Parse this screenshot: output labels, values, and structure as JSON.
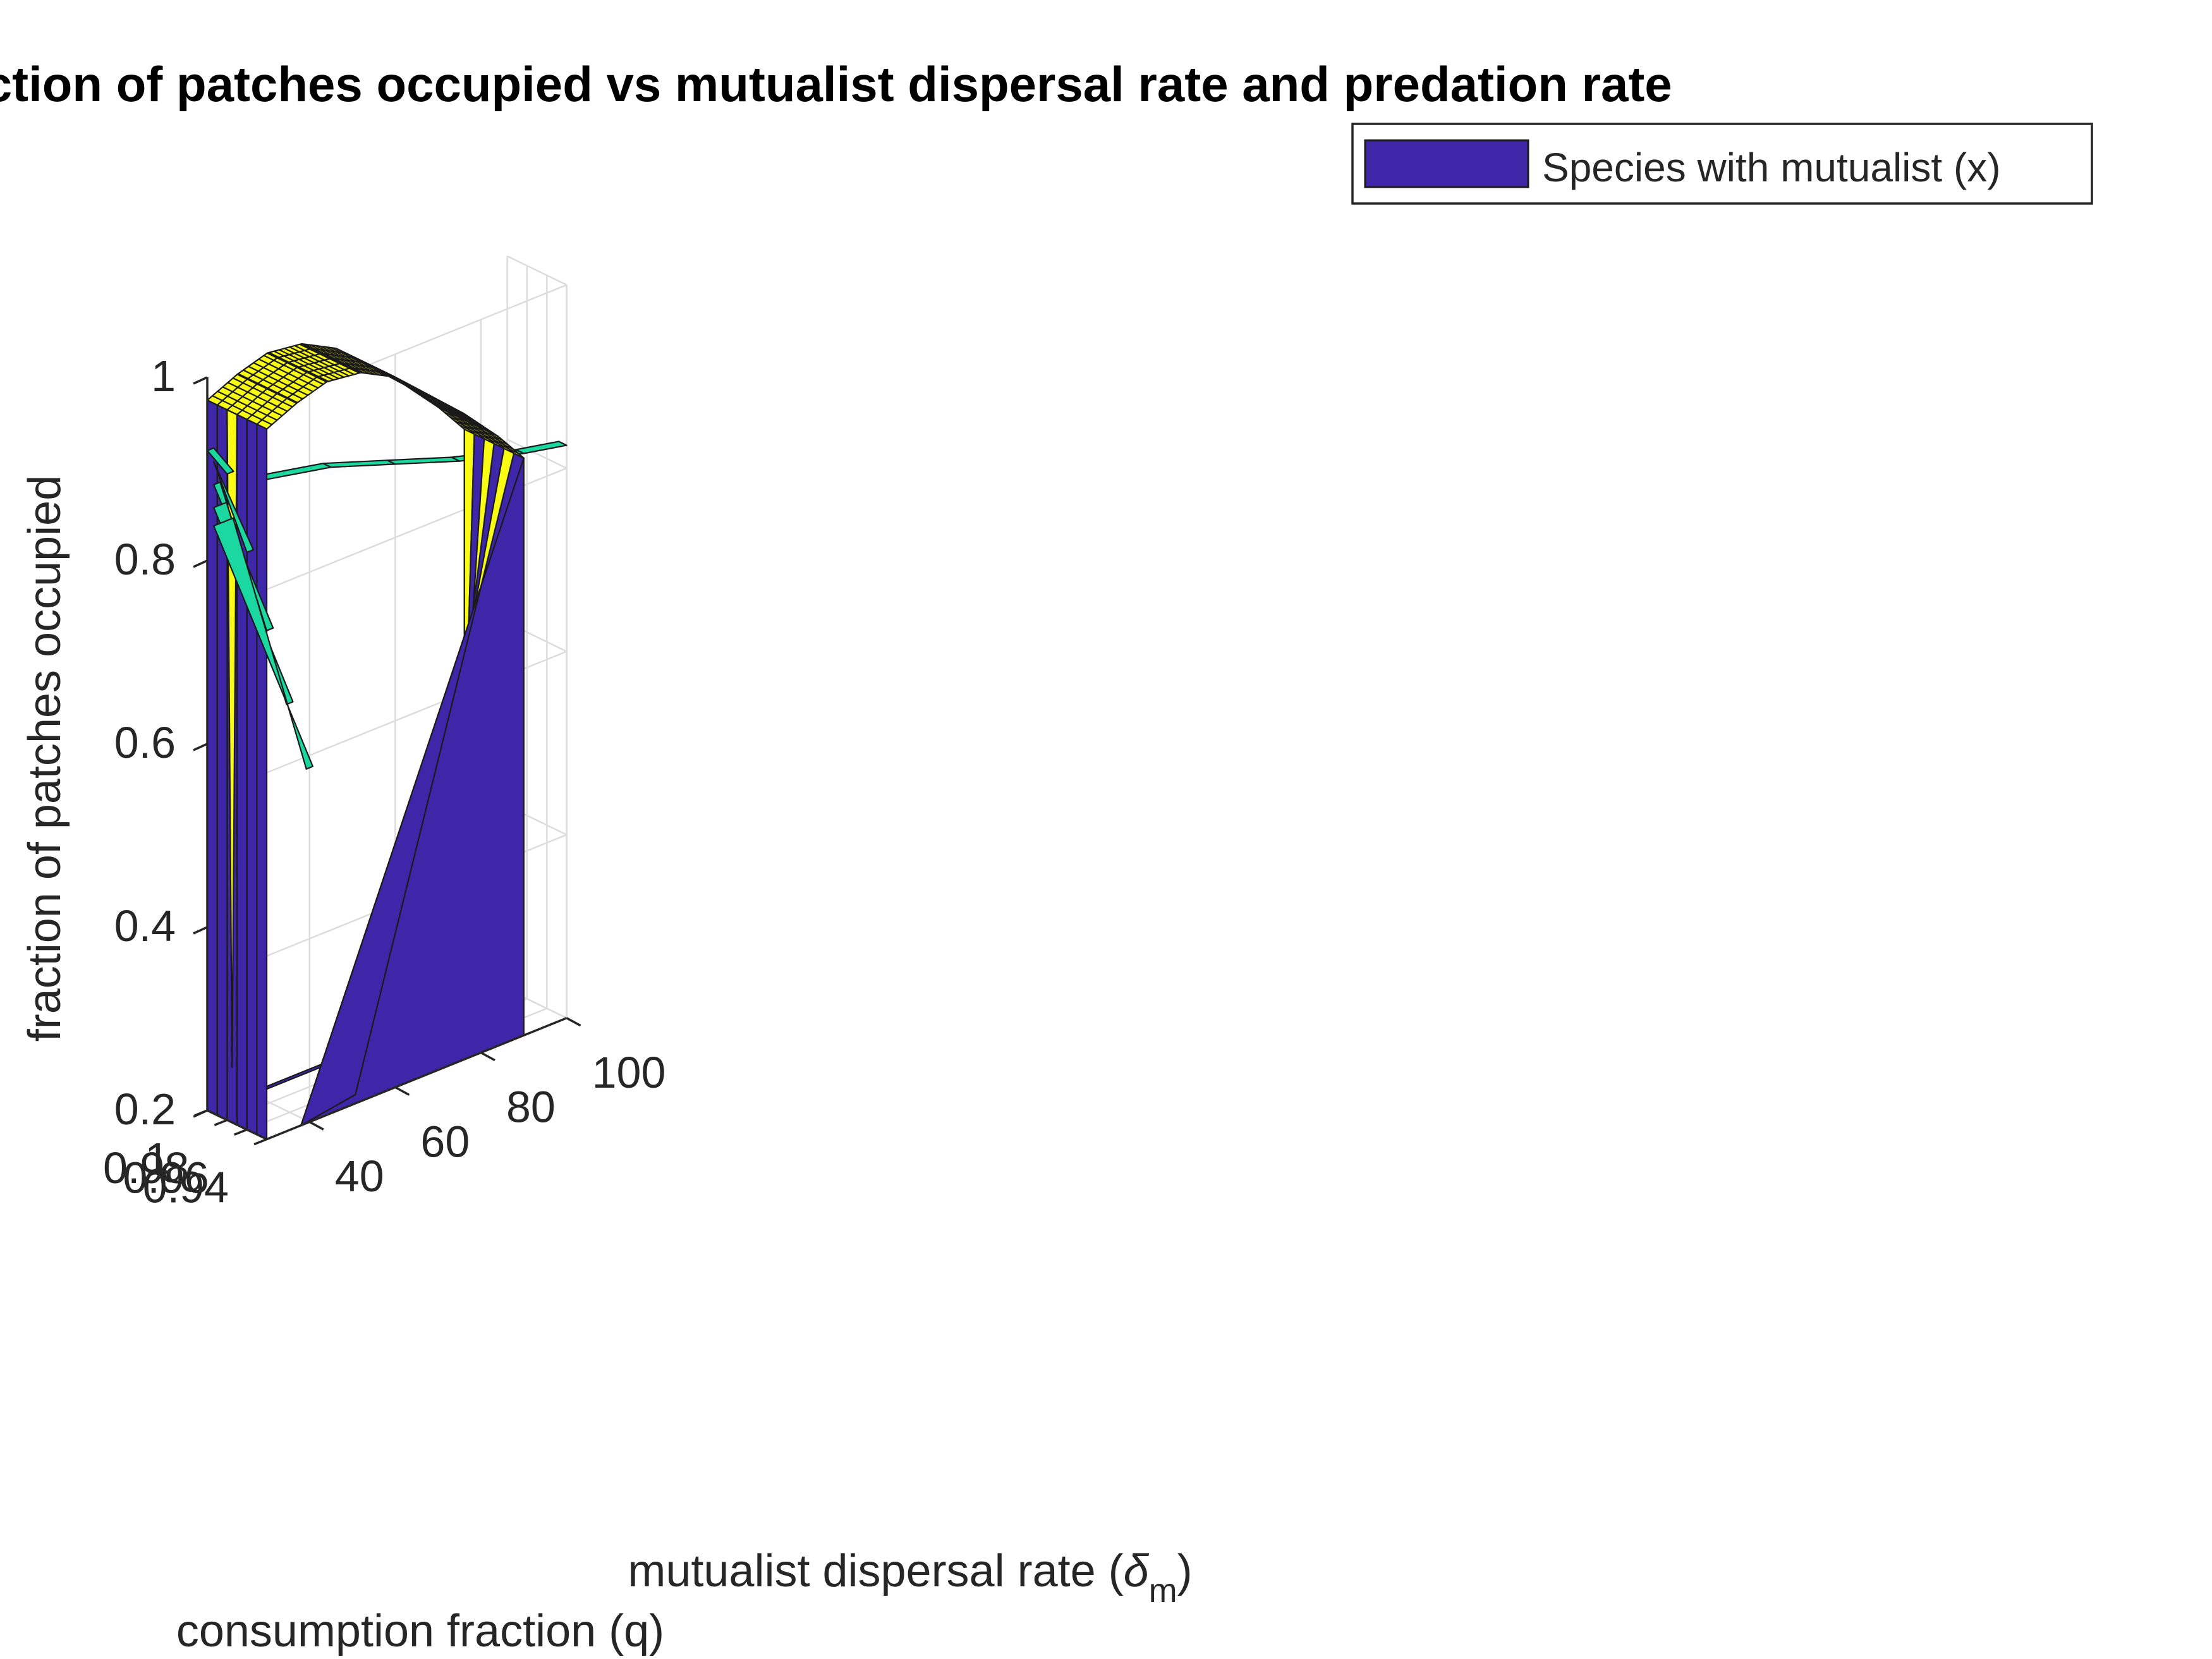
{
  "chart_data": {
    "type": "surface",
    "title": "Fraction of patches occupied vs mutualist dispersal rate and predation rate",
    "xlabel": "consumption fraction (q)",
    "ylabel_prefix": "mutualist dispersal rate (",
    "ylabel_symbol": "δ",
    "ylabel_subscript": "m",
    "ylabel_suffix": ")",
    "zlabel": "fraction of patches occupied",
    "xlim": [
      0.94,
      1.0
    ],
    "ylim": [
      30,
      100
    ],
    "zlim": [
      0.2,
      1.0
    ],
    "x_ticks": [
      1,
      0.98,
      0.96,
      0.94
    ],
    "x_tick_labels": [
      "1",
      "0.98",
      "0.96",
      "0.94"
    ],
    "y_ticks": [
      40,
      60,
      80,
      100
    ],
    "y_tick_labels": [
      "40",
      "60",
      "80",
      "100"
    ],
    "z_ticks": [
      0.2,
      0.4,
      0.6,
      0.8,
      1.0
    ],
    "z_tick_labels": [
      "0.2",
      "0.4",
      "0.6",
      "0.8",
      "1"
    ],
    "grid": true,
    "legend": {
      "position": "top-right",
      "entries": [
        "Species with mutualist (x)"
      ]
    },
    "colors": {
      "low": "#3e26a8",
      "high": "#f9fb15",
      "mid": "#1ad8a0"
    },
    "series": [
      {
        "name": "Species with mutualist (x)",
        "color": "#3e26a8",
        "q_values": [
          0.94,
          0.95,
          0.96,
          0.97,
          0.98,
          0.99,
          1.0
        ],
        "profile": [
          {
            "dispersal": 30,
            "occupied": 0.975
          },
          {
            "dispersal": 37,
            "occupied": 0.99
          },
          {
            "dispersal": 44,
            "occupied": 1.0
          },
          {
            "dispersal": 52,
            "occupied": 0.995
          },
          {
            "dispersal": 60,
            "occupied": 0.975
          },
          {
            "dispersal": 68,
            "occupied": 0.94
          },
          {
            "dispersal": 76,
            "occupied": 0.905
          },
          {
            "dispersal": 84,
            "occupied": 0.865
          },
          {
            "dispersal": 90,
            "occupied": 0.83
          }
        ],
        "collapsed_value": 0.2,
        "collapse_points": [
          {
            "q": 0.94,
            "dispersal": 38,
            "occupied": 0.2
          },
          {
            "q": 0.95,
            "dispersal": 53,
            "occupied": 0.2
          },
          {
            "q": 0.96,
            "dispersal": 63,
            "occupied": 0.2
          },
          {
            "q": 0.97,
            "dispersal": 72,
            "occupied": 0.2
          },
          {
            "q": 0.98,
            "dispersal": 81,
            "occupied": 0.2
          },
          {
            "q": 0.99,
            "dispersal": 86,
            "occupied": 0.2
          },
          {
            "q": 1.0,
            "dispersal": 90,
            "occupied": 0.2
          }
        ]
      },
      {
        "name": "",
        "color": "#1ad8a0",
        "q": 1.0,
        "profile": [
          {
            "dispersal": 30,
            "occupied": 0.92
          },
          {
            "dispersal": 45,
            "occupied": 0.905
          },
          {
            "dispersal": 60,
            "occupied": 0.88
          },
          {
            "dispersal": 75,
            "occupied": 0.855
          },
          {
            "dispersal": 90,
            "occupied": 0.835
          },
          {
            "dispersal": 100,
            "occupied": 0.825
          }
        ]
      }
    ]
  }
}
